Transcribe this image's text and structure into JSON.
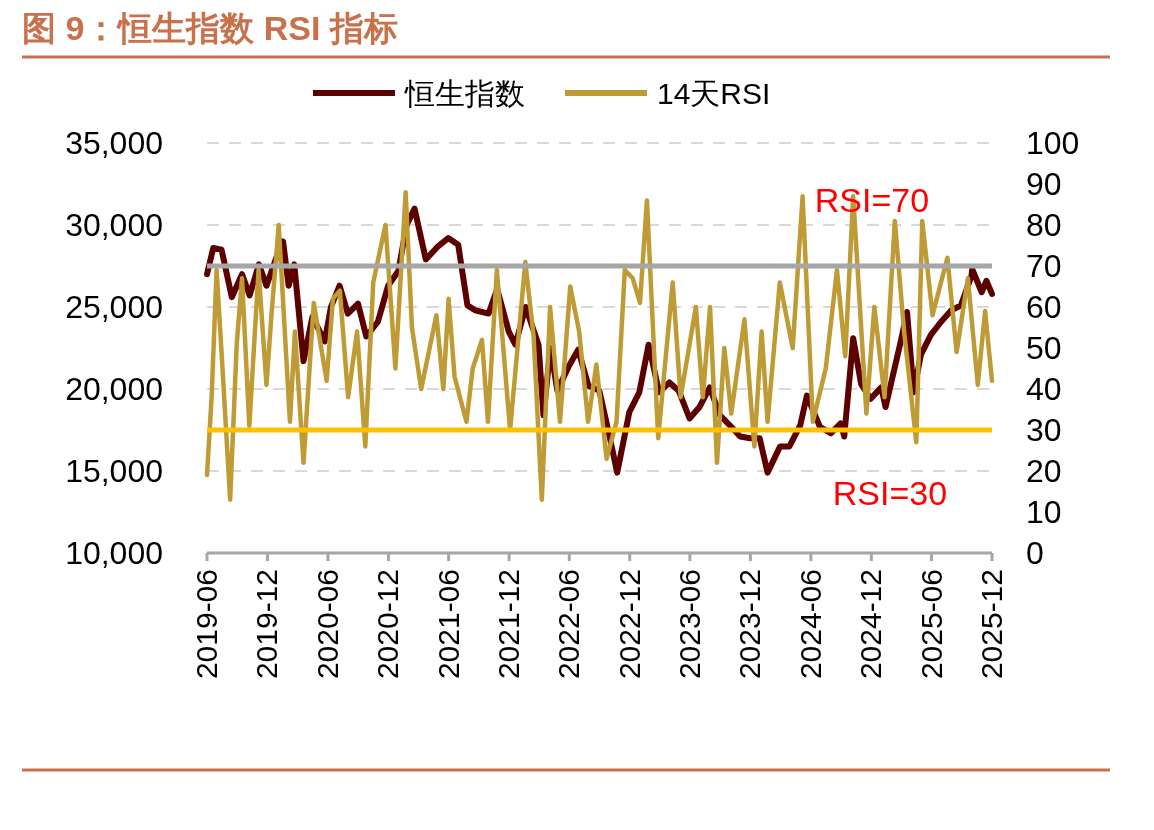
{
  "chart_data": {
    "type": "line",
    "title": "图 9：恒生指数 RSI 指标",
    "xlim": [
      "2019-06",
      "2025-12"
    ],
    "xticks": [
      "2019-06",
      "2019-12",
      "2020-06",
      "2020-12",
      "2021-06",
      "2021-12",
      "2022-06",
      "2022-12",
      "2023-06",
      "2023-12",
      "2024-06",
      "2024-12",
      "2025-06",
      "2025-12"
    ],
    "ylim": [
      10000,
      35000
    ],
    "yticks": [
      {
        "value": 10000,
        "label": "10,000"
      },
      {
        "value": 15000,
        "label": "15,000"
      },
      {
        "value": 20000,
        "label": "20,000"
      },
      {
        "value": 25000,
        "label": "25,000"
      },
      {
        "value": 30000,
        "label": "30,000"
      },
      {
        "value": 35000,
        "label": "35,000"
      }
    ],
    "y2lim": [
      0,
      100
    ],
    "y2ticks": [
      0,
      10,
      20,
      30,
      40,
      50,
      60,
      70,
      80,
      90,
      100
    ],
    "grid": "y",
    "legend": "top",
    "ref_lines": [
      {
        "axis": "y2",
        "value": 70,
        "label": "RSI=70",
        "color": "#a6a6a6"
      },
      {
        "axis": "y2",
        "value": 30,
        "label": "RSI=30",
        "color": "#ffc000"
      }
    ],
    "series": [
      {
        "name": "恒生指数",
        "color": "#5c0000",
        "x": [
          "2019-06-01",
          "2019-06-20",
          "2019-07-15",
          "2019-08-15",
          "2019-09-15",
          "2019-10-08",
          "2019-11-05",
          "2019-11-28",
          "2019-12-31",
          "2020-01-17",
          "2020-02-03",
          "2020-02-20",
          "2020-03-19",
          "2020-04-15",
          "2020-05-22",
          "2020-06-10",
          "2020-07-06",
          "2020-07-31",
          "2020-08-31",
          "2020-09-25",
          "2020-10-30",
          "2020-11-30",
          "2020-12-31",
          "2021-01-25",
          "2021-02-18",
          "2021-03-24",
          "2021-04-30",
          "2021-05-31",
          "2021-06-30",
          "2021-07-28",
          "2021-08-20",
          "2021-09-30",
          "2021-10-26",
          "2021-11-30",
          "2021-12-20",
          "2022-01-20",
          "2022-02-28",
          "2022-03-15",
          "2022-04-05",
          "2022-04-26",
          "2022-05-31",
          "2022-06-28",
          "2022-07-29",
          "2022-08-31",
          "2022-09-30",
          "2022-10-24",
          "2022-11-30",
          "2022-12-30",
          "2023-01-27",
          "2023-02-28",
          "2023-03-31",
          "2023-04-28",
          "2023-05-31",
          "2023-06-30",
          "2023-07-31",
          "2023-08-31",
          "2023-09-29",
          "2023-10-31",
          "2023-11-30",
          "2023-12-29",
          "2024-01-22",
          "2024-02-29",
          "2024-03-28",
          "2024-04-30",
          "2024-05-20",
          "2024-06-28",
          "2024-07-31",
          "2024-08-30",
          "2024-09-10",
          "2024-10-07",
          "2024-10-31",
          "2024-11-29",
          "2024-12-31",
          "2025-01-13",
          "2025-02-28",
          "2025-03-19",
          "2025-04-08",
          "2025-04-30",
          "2025-05-30",
          "2025-06-30",
          "2025-07-31",
          "2025-08-29",
          "2025-09-30",
          "2025-10-02",
          "2025-10-31",
          "2025-11-14",
          "2025-12-01"
        ],
        "values": [
          27000,
          28600,
          28500,
          25600,
          27000,
          25700,
          27600,
          26300,
          28200,
          29000,
          26300,
          27600,
          21700,
          24400,
          22900,
          25000,
          26300,
          24600,
          25200,
          23200,
          24100,
          26300,
          27200,
          30000,
          31000,
          27900,
          28700,
          29200,
          28800,
          25100,
          24800,
          24600,
          26100,
          23500,
          22700,
          25000,
          22700,
          18400,
          22500,
          19900,
          21400,
          22400,
          20200,
          19900,
          17200,
          14900,
          18600,
          19800,
          22700,
          19800,
          20400,
          19900,
          18200,
          18900,
          20100,
          18400,
          17800,
          17100,
          17000,
          17000,
          14900,
          16500,
          16500,
          17800,
          19600,
          17700,
          17300,
          17900,
          17100,
          23100,
          20300,
          19400,
          20100,
          18900,
          22900,
          24700,
          19800,
          22100,
          23300,
          24100,
          24800,
          25100,
          26900,
          27300,
          25900,
          26600,
          25800
        ]
      },
      {
        "name": "14天RSI",
        "color": "#bf9b36",
        "axis": "y2",
        "x": [
          "2019-06-01",
          "2019-06-15",
          "2019-06-30",
          "2019-07-15",
          "2019-08-10",
          "2019-08-30",
          "2019-09-15",
          "2019-10-07",
          "2019-11-04",
          "2019-11-28",
          "2019-12-13",
          "2020-01-04",
          "2020-02-07",
          "2020-02-22",
          "2020-03-19",
          "2020-04-19",
          "2020-05-28",
          "2020-06-16",
          "2020-07-07",
          "2020-08-01",
          "2020-08-28",
          "2020-09-22",
          "2020-10-16",
          "2020-11-22",
          "2020-12-22",
          "2021-01-22",
          "2021-02-10",
          "2021-03-10",
          "2021-04-25",
          "2021-05-16",
          "2021-06-01",
          "2021-06-19",
          "2021-07-25",
          "2021-08-13",
          "2021-09-10",
          "2021-09-28",
          "2021-10-25",
          "2021-12-04",
          "2022-01-19",
          "2022-02-13",
          "2022-03-10",
          "2022-04-04",
          "2022-05-04",
          "2022-06-04",
          "2022-07-01",
          "2022-07-28",
          "2022-08-22",
          "2022-09-22",
          "2022-10-22",
          "2022-11-16",
          "2022-12-10",
          "2023-01-01",
          "2023-01-22",
          "2023-02-25",
          "2023-04-10",
          "2023-05-04",
          "2023-06-19",
          "2023-07-10",
          "2023-08-01",
          "2023-08-22",
          "2023-09-13",
          "2023-10-04",
          "2023-11-13",
          "2023-12-13",
          "2024-01-04",
          "2024-01-22",
          "2024-02-28",
          "2024-04-07",
          "2024-05-07",
          "2024-06-07",
          "2024-07-16",
          "2024-08-19",
          "2024-09-13",
          "2024-10-07",
          "2024-11-16",
          "2024-12-10",
          "2025-01-10",
          "2025-02-10",
          "2025-03-10",
          "2025-04-16",
          "2025-05-04",
          "2025-06-04",
          "2025-07-19",
          "2025-08-16",
          "2025-09-19",
          "2025-10-19",
          "2025-11-10",
          "2025-12-01"
        ],
        "values": [
          19,
          38,
          69,
          49,
          13,
          51,
          67,
          31,
          69,
          41,
          58,
          80,
          32,
          54,
          22,
          61,
          42,
          62,
          64,
          38,
          54,
          26,
          66,
          80,
          45,
          88,
          55,
          40,
          58,
          40,
          62,
          43,
          32,
          45,
          52,
          32,
          69,
          30,
          71,
          53,
          13,
          60,
          32,
          65,
          54,
          32,
          46,
          23,
          32,
          69,
          67,
          61,
          86,
          28,
          66,
          38,
          60,
          38,
          60,
          22,
          50,
          34,
          57,
          26,
          54,
          32,
          66,
          50,
          87,
          32,
          45,
          69,
          48,
          87,
          34,
          60,
          38,
          81,
          54,
          27,
          81,
          58,
          72,
          49,
          67,
          41,
          59,
          42
        ]
      }
    ]
  }
}
